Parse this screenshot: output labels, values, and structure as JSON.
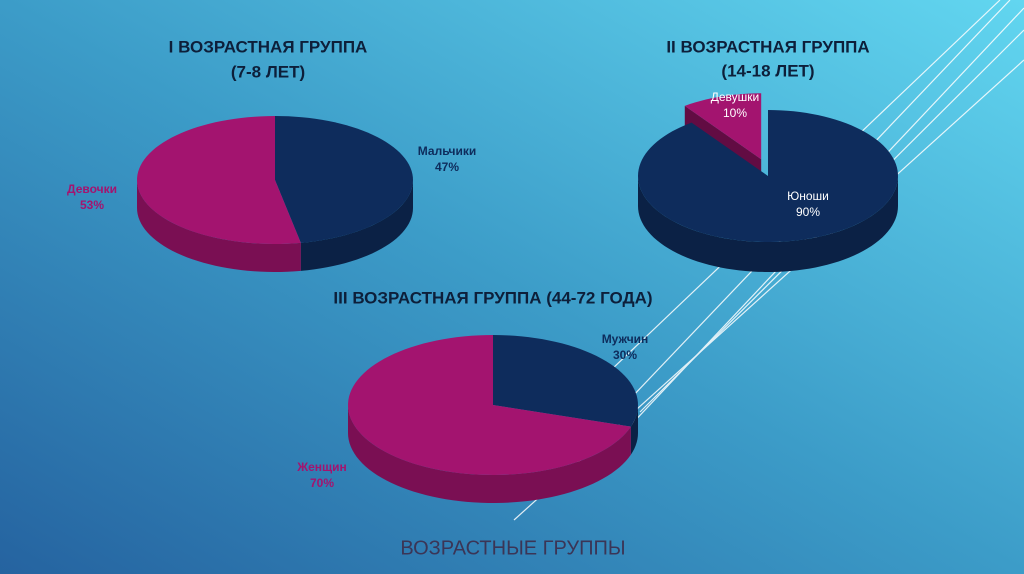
{
  "chart_data": [
    {
      "type": "pie3d",
      "title": "I ВОЗРАСТНАЯ ГРУППА",
      "subtitle": "(7-8 ЛЕТ)",
      "categories": [
        "Мальчики",
        "Девочки"
      ],
      "values": [
        47,
        53
      ],
      "value_labels": [
        "47%",
        "53%"
      ],
      "colors": [
        "#0e2c5c",
        "#a3146f"
      ]
    },
    {
      "type": "pie3d",
      "title": "II ВОЗРАСТНАЯ ГРУППА",
      "subtitle": "(14-18 ЛЕТ)",
      "categories": [
        "Юноши",
        "Девушки"
      ],
      "values": [
        90,
        10
      ],
      "value_labels": [
        "90%",
        "10%"
      ],
      "colors": [
        "#0e2c5c",
        "#a3146f"
      ],
      "explode": [
        0,
        1
      ]
    },
    {
      "type": "pie3d",
      "title": "III ВОЗРАСТНАЯ ГРУППА (44-72 ГОДА)",
      "categories": [
        "Мужчин",
        "Женщин"
      ],
      "values": [
        30,
        70
      ],
      "value_labels": [
        "30%",
        "70%"
      ],
      "colors": [
        "#0e2c5c",
        "#a3146f"
      ]
    }
  ],
  "slide_title": "ВОЗРАСТНЫЕ ГРУППЫ"
}
